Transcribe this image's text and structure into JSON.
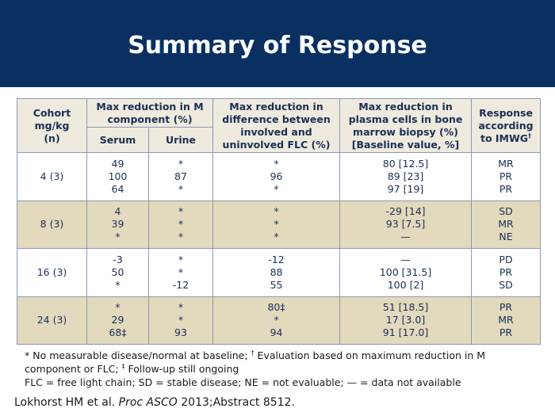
{
  "title": "Summary of Response",
  "table": {
    "headers": {
      "cohort": [
        "Cohort",
        "mg/kg",
        "(n)"
      ],
      "max_m_component": "Max reduction in M component (%)",
      "serum": "Serum",
      "urine": "Urine",
      "flc": "Max reduction in difference between involved and uninvolved FLC (%)",
      "plasma": "Max reduction in plasma cells in bone marrow biopsy (%) [Baseline value, %]",
      "response": "Response according to IMWG",
      "response_mark": "†"
    },
    "rows": [
      {
        "cohort": "4 (3)",
        "serum": [
          "49",
          "100",
          "64"
        ],
        "urine": [
          "*",
          "87",
          "*"
        ],
        "flc": [
          "*",
          "96",
          "*"
        ],
        "plasma": [
          "80 [12.5]",
          "89 [23]",
          "97 [19]"
        ],
        "response": [
          "MR",
          "PR",
          "PR"
        ]
      },
      {
        "cohort": "8 (3)",
        "serum": [
          "4",
          "39",
          "*"
        ],
        "urine": [
          "*",
          "*",
          "*"
        ],
        "flc": [
          "*",
          "*",
          "*"
        ],
        "plasma": [
          "-29 [14]",
          "93 [7.5]",
          "—"
        ],
        "response": [
          "SD",
          "MR",
          "NE"
        ]
      },
      {
        "cohort": "16 (3)",
        "serum": [
          "-3",
          "50",
          "*"
        ],
        "urine": [
          "*",
          "*",
          "-12"
        ],
        "flc": [
          "-12",
          "88",
          "55"
        ],
        "plasma": [
          "—",
          "100 [31.5]",
          "100 [2]"
        ],
        "response": [
          "PD",
          "PR",
          "SD"
        ]
      },
      {
        "cohort": "24 (3)",
        "serum": [
          "*",
          "29",
          "68‡"
        ],
        "urine": [
          "*",
          "*",
          "93"
        ],
        "flc": [
          "80‡",
          "*",
          "94"
        ],
        "plasma": [
          "51 [18.5]",
          "17 [3.0]",
          "91 [17.0]"
        ],
        "response": [
          "PR",
          "MR",
          "PR"
        ]
      }
    ]
  },
  "footnotes": {
    "line1_a": "* No measurable disease/normal at baseline;",
    "dagger": "†",
    "line1_b": " Evaluation based on maximum reduction in M component or FLC;",
    "ddagger": "‡",
    "line1_c": " Follow-up still ongoing",
    "line2": "FLC = free light chain; SD = stable disease; NE = not evaluable; — = data not available"
  },
  "citation": {
    "authors": "Lokhorst HM et al. ",
    "journal": "Proc ASCO",
    "rest": " 2013;Abstract 8512."
  },
  "colors": {
    "banner": "#0a3062",
    "row_alt": "#e3d9bd",
    "header_bg": "#eeeade",
    "text": "#1a2f55"
  }
}
